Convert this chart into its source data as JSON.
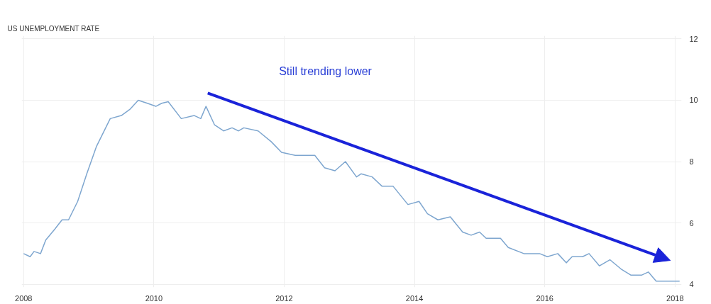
{
  "chart_data": {
    "type": "line",
    "title": "US UNEMPLOYMENT RATE",
    "annotations": [
      "Still trending lower"
    ],
    "x": [
      2008.0,
      2008.1,
      2008.16,
      2008.26,
      2008.34,
      2008.48,
      2008.59,
      2008.69,
      2008.83,
      2008.97,
      2009.12,
      2009.33,
      2009.5,
      2009.63,
      2009.76,
      2009.9,
      2010.03,
      2010.12,
      2010.22,
      2010.42,
      2010.62,
      2010.72,
      2010.8,
      2010.93,
      2011.07,
      2011.2,
      2011.3,
      2011.38,
      2011.6,
      2011.8,
      2011.96,
      2012.17,
      2012.47,
      2012.62,
      2012.78,
      2012.94,
      2013.11,
      2013.18,
      2013.35,
      2013.5,
      2013.67,
      2013.9,
      2014.07,
      2014.2,
      2014.36,
      2014.55,
      2014.74,
      2014.87,
      2015.0,
      2015.1,
      2015.32,
      2015.44,
      2015.68,
      2015.92,
      2016.04,
      2016.2,
      2016.33,
      2016.42,
      2016.58,
      2016.68,
      2016.84,
      2017.0,
      2017.17,
      2017.32,
      2017.49,
      2017.59,
      2017.71,
      2018.07
    ],
    "series": [
      {
        "color": "#7ea6cf",
        "values": [
          5.0,
          4.9,
          5.07,
          5.0,
          5.44,
          5.8,
          6.1,
          6.1,
          6.7,
          7.6,
          8.5,
          9.4,
          9.5,
          9.7,
          10.0,
          9.9,
          9.8,
          9.9,
          9.95,
          9.4,
          9.5,
          9.4,
          9.8,
          9.2,
          9.0,
          9.1,
          9.0,
          9.1,
          9.0,
          8.65,
          8.3,
          8.2,
          8.2,
          7.8,
          7.7,
          8.0,
          7.5,
          7.6,
          7.5,
          7.2,
          7.2,
          6.6,
          6.7,
          6.3,
          6.1,
          6.2,
          5.7,
          5.6,
          5.7,
          5.5,
          5.5,
          5.2,
          5.0,
          5.0,
          4.9,
          5.0,
          4.7,
          4.9,
          4.9,
          5.0,
          4.6,
          4.8,
          4.5,
          4.3,
          4.3,
          4.4,
          4.1,
          4.1
        ]
      }
    ],
    "xlim": [
      2007.97,
      2018.1
    ],
    "ylim": [
      3.9,
      12.1
    ],
    "xticks": [
      2008,
      2010,
      2012,
      2014,
      2016,
      2018
    ],
    "yticks": [
      4,
      6,
      8,
      10,
      12
    ],
    "grid": true,
    "marker": "none",
    "line_style": "solid"
  }
}
